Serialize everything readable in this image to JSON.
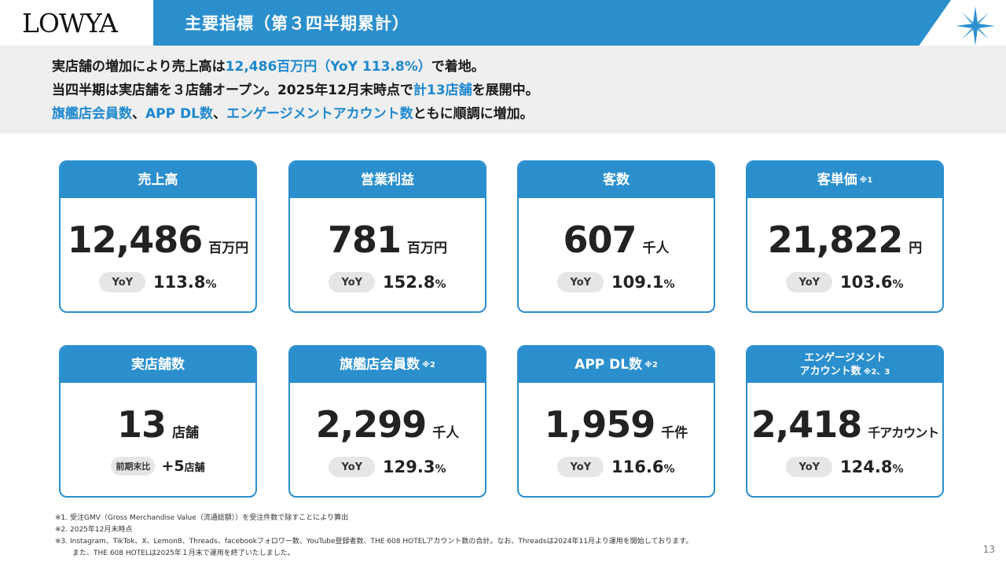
{
  "header": {
    "logo": "LOWYA",
    "title": "主要指標（第３四半期累計）"
  },
  "summary": {
    "line1": {
      "a": "実店舗の増加により売上高は",
      "b": "12,486百万円（YoY 113.8%）",
      "c": "で着地。"
    },
    "line2": {
      "a": "当四半期は実店舗を３店舗オープン。2025年12月末時点で",
      "b": "計13店舗",
      "c": "を展開中。"
    },
    "line3": {
      "a": "旗艦店会員数",
      "b": "、",
      "c": "APP DL数",
      "d": "、",
      "e": "エンゲージメントアカウント数",
      "f": "ともに順調に増加。"
    }
  },
  "yoy_label": "YoY",
  "pct_symbol": "%",
  "cards": [
    {
      "title": "売上高",
      "note": "",
      "value": "12,486",
      "unit": "百万円",
      "yoy": "113.8"
    },
    {
      "title": "営業利益",
      "note": "",
      "value": "781",
      "unit": "百万円",
      "yoy": "152.8"
    },
    {
      "title": "客数",
      "note": "",
      "value": "607",
      "unit": "千人",
      "yoy": "109.1"
    },
    {
      "title": "客単価",
      "note": "※1",
      "value": "21,822",
      "unit": "円",
      "yoy": "103.6"
    },
    {
      "title": "実店舗数",
      "note": "",
      "value": "13",
      "unit": "店舗",
      "prev_label": "前期末比",
      "plus_value": "+5",
      "plus_unit": "店舗"
    },
    {
      "title": "旗艦店会員数",
      "note": "※2",
      "value": "2,299",
      "unit": "千人",
      "yoy": "129.3"
    },
    {
      "title": "APP DL数",
      "note": "※2",
      "value": "1,959",
      "unit": "千件",
      "yoy": "116.6"
    },
    {
      "title_line1": "エンゲージメント",
      "title_line2": "アカウント数",
      "note": "※2、3",
      "value": "2,418",
      "unit": "千アカウント",
      "yoy": "124.8"
    }
  ],
  "footnotes": [
    "※1. 受注GMV（Gross Merchandise Value（流通総額））を受注件数で除すことにより算出",
    "※2. 2025年12月末時点",
    "※3. Instagram、TikTok、X、Lemon8、Threads、facebookフォロワー数、YouTube登録者数、THE 608 HOTELアカウント数の合計。なお、Threadsは2024年11月より運用を開始しております。",
    "また、THE 608 HOTELは2025年１月末で運用を終了いたしました。"
  ],
  "page_number": "13",
  "colors": {
    "accent": "#2b8fce",
    "highlight": "#1e88cf",
    "pill": "#e6e6e6",
    "summary_bg": "#efefef"
  }
}
